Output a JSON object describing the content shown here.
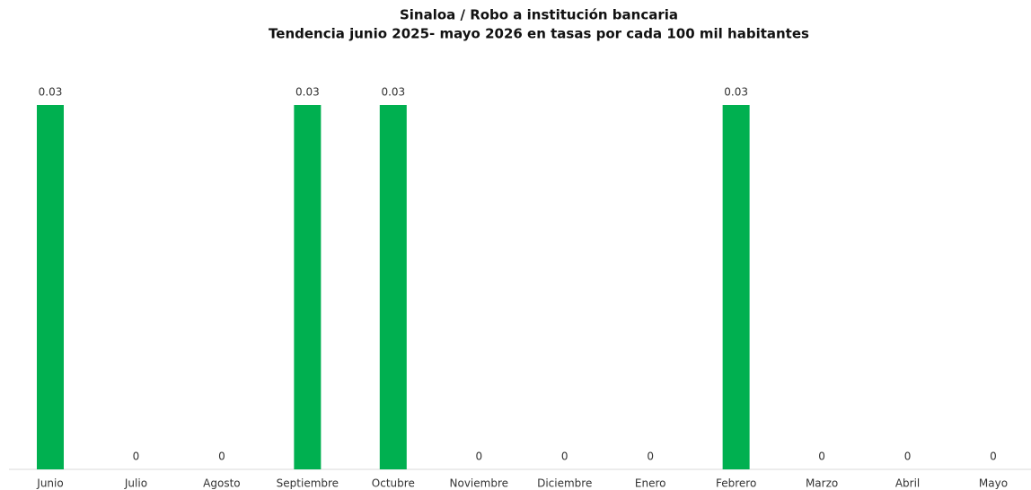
{
  "chart_data": {
    "type": "bar",
    "title": "Sinaloa / Robo a institución bancaria",
    "subtitle": "Tendencia junio 2025- mayo 2026 en tasas por cada  100 mil habitantes",
    "categories": [
      "Junio",
      "Julio",
      "Agosto",
      "Septiembre",
      "Octubre",
      "Noviembre",
      "Diciembre",
      "Enero",
      "Febrero",
      "Marzo",
      "Abril",
      "Mayo"
    ],
    "values": [
      0.03,
      0,
      0,
      0.03,
      0.03,
      0,
      0,
      0,
      0.03,
      0,
      0,
      0
    ],
    "color": "#00b050"
  }
}
